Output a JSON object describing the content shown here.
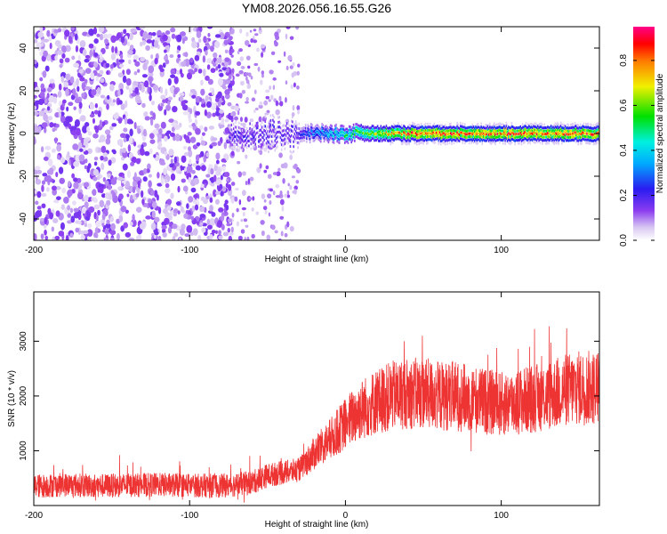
{
  "title": "YM08.2026.056.16.55.G26",
  "chart_data": [
    {
      "type": "heatmap",
      "name": "spectrogram",
      "xlabel": "Height of straight line (km)",
      "ylabel": "Frequency (Hz)",
      "xlim": [
        -200,
        163
      ],
      "ylim": [
        -50,
        50
      ],
      "xticks": [
        -200,
        -100,
        0,
        100
      ],
      "yticks": [
        -40,
        -20,
        0,
        20,
        40
      ],
      "colorbar": {
        "label": "Normalized spectral amplitude",
        "range": [
          0.0,
          0.95
        ],
        "ticks": [
          0.0,
          0.2,
          0.4,
          0.6,
          0.8
        ],
        "tick_labels": [
          "0.0",
          "0.2",
          "0.4",
          "0.6",
          "0.8"
        ],
        "colormap": "rainbow (white → purple → blue → cyan → green → yellow → red → magenta)"
      },
      "description_regions": [
        {
          "x_from": -200,
          "x_to": -75,
          "pattern": "broadband noise",
          "amplitude": 0.1
        },
        {
          "x_from": -75,
          "x_to": -30,
          "pattern": "transition, narrow band near 0 Hz",
          "amplitude": 0.2
        },
        {
          "x_from": -30,
          "x_to": 163,
          "pattern": "narrow signal band at ~0 Hz",
          "center_hz": 0,
          "amplitude_peak": 0.9
        }
      ]
    },
    {
      "type": "line",
      "name": "snr",
      "xlabel": "Height of straight line (km)",
      "ylabel": "SNR (10 * v/v)",
      "xlim": [
        -200,
        163
      ],
      "ylim": [
        0,
        3900
      ],
      "xticks": [
        -200,
        -100,
        0,
        100
      ],
      "yticks": [
        1000,
        2000,
        3000
      ],
      "color": "#ee3333",
      "series": [
        {
          "name": "SNR",
          "x": [
            -200,
            -180,
            -160,
            -140,
            -120,
            -100,
            -80,
            -70,
            -60,
            -50,
            -40,
            -30,
            -20,
            -10,
            0,
            10,
            20,
            30,
            40,
            50,
            60,
            70,
            80,
            90,
            100,
            110,
            120,
            130,
            140,
            150,
            163
          ],
          "values": [
            350,
            380,
            360,
            370,
            380,
            370,
            360,
            380,
            420,
            550,
            600,
            650,
            950,
            1200,
            1500,
            1750,
            1900,
            2000,
            2050,
            2050,
            2000,
            2000,
            1950,
            1900,
            1850,
            1900,
            1950,
            2000,
            2100,
            2150,
            2150
          ]
        }
      ]
    }
  ]
}
